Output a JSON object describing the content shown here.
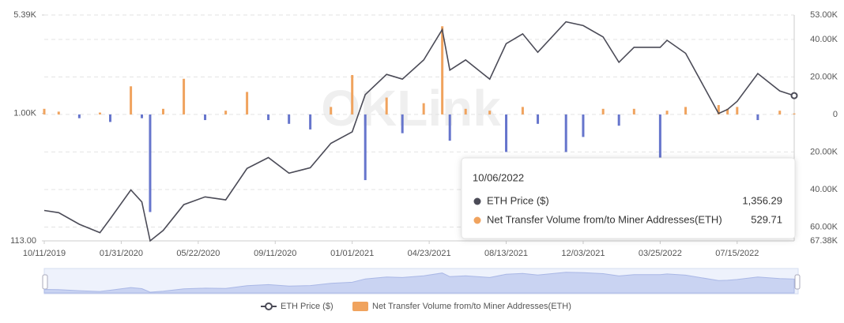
{
  "chart_data": {
    "type": "line-bar",
    "watermark": "OKLink",
    "x": [
      "10/11/2019",
      "11/01/2019",
      "12/01/2019",
      "12/31/2019",
      "01/15/2020",
      "02/14/2020",
      "03/01/2020",
      "03/13/2020",
      "04/01/2020",
      "05/01/2020",
      "06/01/2020",
      "07/01/2020",
      "08/01/2020",
      "09/01/2020",
      "10/01/2020",
      "11/01/2020",
      "12/01/2020",
      "01/01/2021",
      "01/20/2021",
      "02/20/2021",
      "03/15/2021",
      "04/15/2021",
      "05/12/2021",
      "05/23/2021",
      "06/15/2021",
      "07/20/2021",
      "08/13/2021",
      "09/06/2021",
      "09/28/2021",
      "11/08/2021",
      "12/03/2021",
      "01/01/2022",
      "01/24/2022",
      "02/15/2022",
      "03/25/2022",
      "04/04/2022",
      "05/01/2022",
      "06/18/2022",
      "07/01/2022",
      "07/15/2022",
      "08/14/2022",
      "09/15/2022",
      "10/06/2022"
    ],
    "xlim": [
      "10/11/2019",
      "10/06/2022"
    ],
    "xticks": [
      "10/11/2019",
      "01/31/2020",
      "05/22/2020",
      "09/11/2020",
      "01/01/2021",
      "04/23/2021",
      "08/13/2021",
      "12/03/2021",
      "03/25/2022",
      "07/15/2022"
    ],
    "series": [
      {
        "name": "ETH Price ($)",
        "color": "#4b4b57",
        "axis": "y",
        "kind": "line",
        "values": [
          190,
          183,
          150,
          130,
          165,
          270,
          220,
          113,
          135,
          210,
          240,
          228,
          390,
          470,
          360,
          395,
          600,
          730,
          1380,
          1950,
          1800,
          2500,
          4200,
          2100,
          2500,
          1800,
          3300,
          3900,
          2850,
          4800,
          4500,
          3700,
          2400,
          3100,
          3100,
          3500,
          2800,
          1000,
          1070,
          1230,
          1980,
          1470,
          1356.29
        ]
      },
      {
        "name": "Net Transfer Volume from/to Miner Addresses(ETH)",
        "color": "#f0a35e",
        "negative_color": "#6675cc",
        "axis": "y2",
        "kind": "bar",
        "values": [
          3000,
          1500,
          -2000,
          1000,
          -4000,
          15000,
          -2000,
          -52000,
          3000,
          19000,
          -3000,
          2000,
          12000,
          -3000,
          -5000,
          -8000,
          4000,
          21000,
          -35000,
          9000,
          -10000,
          6000,
          47000,
          -14000,
          3000,
          2000,
          -20000,
          4000,
          -5000,
          -20000,
          -12000,
          3000,
          -6000,
          3000,
          -24000,
          2000,
          4000,
          5000,
          3000,
          4000,
          -3000,
          2000,
          529.71
        ]
      }
    ],
    "ylim": [
      113,
      5390
    ],
    "log_y": true,
    "yticks": [
      {
        "value": 113,
        "label": "113.00"
      },
      {
        "value": 1000,
        "label": "1.00K"
      },
      {
        "value": 5390,
        "label": "5.39K"
      }
    ],
    "y2lim": [
      -67380,
      53000
    ],
    "y2ticks": [
      {
        "value": 53000,
        "label": "53.00K"
      },
      {
        "value": 40000,
        "label": "40.00K"
      },
      {
        "value": 20000,
        "label": "20.00K"
      },
      0,
      {
        "value": -20000,
        "label": "20.00K"
      },
      {
        "value": -40000,
        "label": "40.00K"
      },
      {
        "value": -60000,
        "label": "60.00K"
      },
      {
        "value": -67380,
        "label": "67.38K"
      }
    ],
    "grid": true,
    "tooltip": {
      "index": 42,
      "labels": [
        "1,356.29",
        "529.71"
      ]
    }
  }
}
